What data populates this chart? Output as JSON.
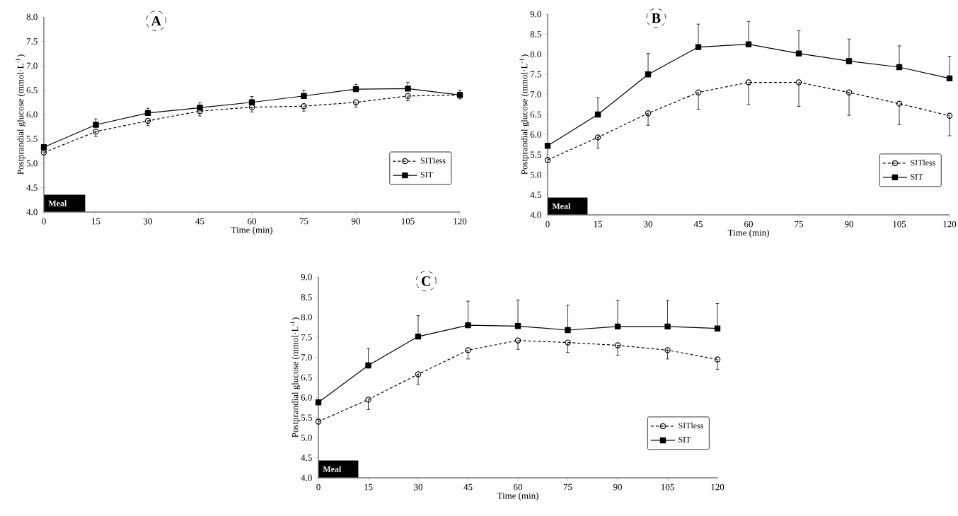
{
  "chart_data": [
    {
      "type": "line",
      "title": "A",
      "xlabel": "Time (min)",
      "ylabel": "Postprandial glucose (mmol·L$^{-1}$)",
      "annotations": [
        "Meal"
      ],
      "legend": "bottom right",
      "x": [
        0,
        15,
        30,
        45,
        60,
        75,
        90,
        105,
        120
      ],
      "xlim": [
        0,
        120
      ],
      "xticks": [
        0,
        15,
        30,
        45,
        60,
        75,
        90,
        105,
        120
      ],
      "ylim": [
        4,
        8
      ],
      "yticks": [
        {
          "value": 4,
          "label": "4.0"
        },
        {
          "value": 4.5,
          "label": "4.5"
        },
        {
          "value": 5,
          "label": "5.0"
        },
        {
          "value": 5.5,
          "label": "5.5"
        },
        {
          "value": 6,
          "label": "6.0"
        },
        {
          "value": 6.5,
          "label": "6.5"
        },
        {
          "value": 7,
          "label": "7.0"
        },
        {
          "value": 7.5,
          "label": "7.5"
        },
        {
          "value": 8,
          "label": "8.0"
        }
      ],
      "series": [
        {
          "name": "SITless",
          "color": "#000000",
          "marker": "circle",
          "line_style": "dashed",
          "values": [
            5.22,
            5.65,
            5.87,
            6.07,
            6.15,
            6.17,
            6.25,
            6.38,
            6.4
          ],
          "errors": [
            null,
            [
              5.55,
              5.65
            ],
            [
              5.77,
              5.87
            ],
            [
              5.97,
              6.07
            ],
            [
              6.05,
              6.15
            ],
            [
              6.07,
              6.17
            ],
            [
              6.15,
              6.25
            ],
            [
              6.28,
              6.38
            ],
            [
              6.32,
              6.4
            ]
          ]
        },
        {
          "name": "SIT",
          "color": "#000000",
          "marker": "square",
          "line_style": "solid",
          "values": [
            5.33,
            5.79,
            6.03,
            6.14,
            6.25,
            6.38,
            6.52,
            6.53,
            6.4
          ],
          "errors": [
            null,
            [
              5.79,
              5.91
            ],
            [
              6.03,
              6.13
            ],
            [
              6.14,
              6.24
            ],
            [
              6.25,
              6.37
            ],
            [
              6.38,
              6.5
            ],
            [
              6.52,
              6.62
            ],
            [
              6.53,
              6.66
            ],
            [
              6.4,
              6.5
            ]
          ]
        }
      ]
    },
    {
      "type": "line",
      "title": "B",
      "xlabel": "Time (min)",
      "ylabel": "Postprandial glucose (mmol·L$^{-1}$)",
      "annotations": [
        "Meal"
      ],
      "legend": "bottom right",
      "x": [
        0,
        15,
        30,
        45,
        60,
        75,
        90,
        105,
        120
      ],
      "xlim": [
        0,
        120
      ],
      "xticks": [
        0,
        15,
        30,
        45,
        60,
        75,
        90,
        105,
        120
      ],
      "ylim": [
        4,
        9
      ],
      "yticks": [
        {
          "value": 4,
          "label": "4.0"
        },
        {
          "value": 4.5,
          "label": "4.5"
        },
        {
          "value": 5,
          "label": "5.0"
        },
        {
          "value": 5.5,
          "label": "5.5"
        },
        {
          "value": 6,
          "label": "6.0"
        },
        {
          "value": 6.5,
          "label": "6.5"
        },
        {
          "value": 7,
          "label": "7.0"
        },
        {
          "value": 7.5,
          "label": "7.5"
        },
        {
          "value": 8,
          "label": "8.0"
        },
        {
          "value": 8.5,
          "label": "8.5"
        },
        {
          "value": 9,
          "label": "9.0"
        }
      ],
      "series": [
        {
          "name": "SITless",
          "color": "#000000",
          "marker": "circle",
          "line_style": "dashed",
          "values": [
            5.37,
            5.93,
            6.53,
            7.05,
            7.3,
            7.3,
            7.05,
            6.77,
            6.47
          ],
          "errors": [
            null,
            [
              5.66,
              5.93
            ],
            [
              6.23,
              6.53
            ],
            [
              6.63,
              7.05
            ],
            [
              6.75,
              7.3
            ],
            [
              6.7,
              7.3
            ],
            [
              6.48,
              7.05
            ],
            [
              6.25,
              6.77
            ],
            [
              5.97,
              6.47
            ]
          ]
        },
        {
          "name": "SIT",
          "color": "#000000",
          "marker": "square",
          "line_style": "solid",
          "values": [
            5.72,
            6.5,
            7.5,
            8.18,
            8.25,
            8.02,
            7.83,
            7.68,
            7.4
          ],
          "errors": [
            null,
            [
              6.5,
              6.92
            ],
            [
              7.5,
              8.02
            ],
            [
              8.18,
              8.75
            ],
            [
              8.25,
              8.82
            ],
            [
              8.02,
              8.59
            ],
            [
              7.83,
              8.38
            ],
            [
              7.68,
              8.21
            ],
            [
              7.4,
              7.95
            ]
          ]
        }
      ]
    },
    {
      "type": "line",
      "title": "C",
      "xlabel": "Time (min)",
      "ylabel": "Postprandial glucose (mmol·L$^{-1}$)",
      "annotations": [
        "Meal"
      ],
      "legend": "bottom right",
      "x": [
        0,
        15,
        30,
        45,
        60,
        75,
        90,
        105,
        120
      ],
      "xlim": [
        0,
        120
      ],
      "xticks": [
        0,
        15,
        30,
        45,
        60,
        75,
        90,
        105,
        120
      ],
      "ylim": [
        4,
        9
      ],
      "yticks": [
        {
          "value": 4,
          "label": "4.0"
        },
        {
          "value": 4.5,
          "label": "4.5"
        },
        {
          "value": 5,
          "label": "5.0"
        },
        {
          "value": 5.5,
          "label": "5.5"
        },
        {
          "value": 6,
          "label": "6.0"
        },
        {
          "value": 6.5,
          "label": "6.5"
        },
        {
          "value": 7,
          "label": "7.0"
        },
        {
          "value": 7.5,
          "label": "7.5"
        },
        {
          "value": 8,
          "label": "8.0"
        },
        {
          "value": 8.5,
          "label": "8.5"
        },
        {
          "value": 9,
          "label": "9.0"
        }
      ],
      "series": [
        {
          "name": "SITless",
          "color": "#000000",
          "marker": "circle",
          "line_style": "dashed",
          "values": [
            5.4,
            5.95,
            6.58,
            7.18,
            7.42,
            7.37,
            7.3,
            7.18,
            6.95
          ],
          "errors": [
            null,
            [
              5.7,
              5.95
            ],
            [
              6.33,
              6.58
            ],
            [
              6.96,
              7.18
            ],
            [
              7.2,
              7.42
            ],
            [
              7.12,
              7.37
            ],
            [
              7.05,
              7.3
            ],
            [
              6.96,
              7.18
            ],
            [
              6.7,
              6.95
            ]
          ]
        },
        {
          "name": "SIT",
          "color": "#000000",
          "marker": "square",
          "line_style": "solid",
          "values": [
            5.88,
            6.8,
            7.52,
            7.8,
            7.78,
            7.68,
            7.77,
            7.77,
            7.72
          ],
          "errors": [
            null,
            [
              6.8,
              7.22
            ],
            [
              7.52,
              8.04
            ],
            [
              7.8,
              8.4
            ],
            [
              7.78,
              8.43
            ],
            [
              7.68,
              8.3
            ],
            [
              7.77,
              8.42
            ],
            [
              7.77,
              8.42
            ],
            [
              7.72,
              8.34
            ]
          ]
        }
      ]
    }
  ]
}
